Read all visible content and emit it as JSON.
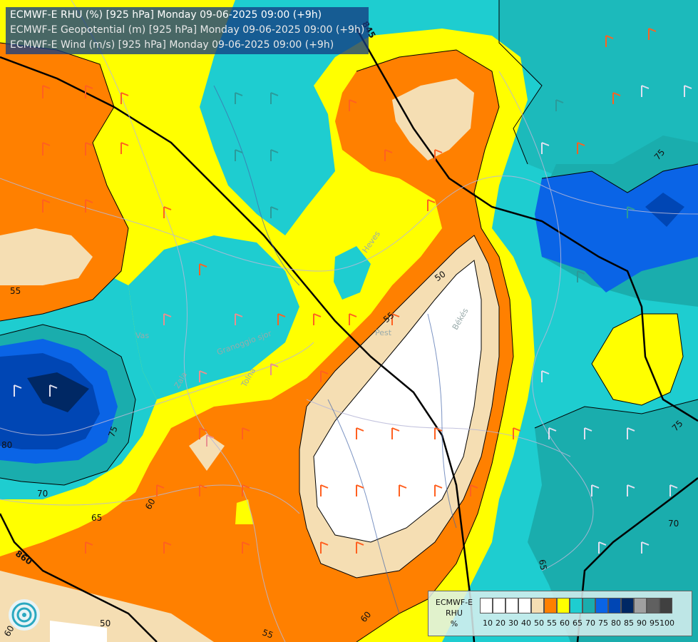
{
  "titles": [
    "ECMWF-E RHU (%) [925 hPa] Monday 09-06-2025 09:00 (+9h)",
    "ECMWF-E Geopotential (m) [925 hPa] Monday 09-06-2025 09:00 (+9h)",
    "ECMWF-E Wind (m/s) [925 hPa] Monday 09-06-2025 09:00 (+9h)"
  ],
  "legend": {
    "title_line1": "ECMWF-E",
    "title_line2": "RHU",
    "unit": "%",
    "ticks": [
      "10",
      "20",
      "30",
      "40",
      "50",
      "55",
      "60",
      "65",
      "70",
      "75",
      "80",
      "85",
      "90",
      "95",
      "100"
    ],
    "colors": [
      "#ffffff",
      "#ffffff",
      "#ffffff",
      "#ffffff",
      "#f5deb3",
      "#ff8000",
      "#ffff00",
      "#1ecdd0",
      "#1aadad",
      "#0a64e6",
      "#0046b4",
      "#002864",
      "#a0a0a0",
      "#606060",
      "#404040"
    ]
  },
  "contour_labels": {
    "rhu": [
      "55",
      "75",
      "80",
      "70",
      "65",
      "60",
      "55",
      "50",
      "50",
      "60",
      "65",
      "75",
      "75",
      "70",
      "55",
      "60"
    ],
    "geopotential": [
      "845",
      "860"
    ]
  },
  "place_labels": [
    "Heves",
    "Pest",
    "Békés",
    "Vas",
    "Zala",
    "Tolna",
    "Granoggio sjor"
  ],
  "colors": {
    "white": "#ffffff",
    "tan": "#f5deb3",
    "orange": "#ff8000",
    "yellow": "#ffff00",
    "cyan": "#1ecdd0",
    "teal": "#1aadad",
    "blue": "#0a64e6",
    "darkblue": "#0046b4",
    "navy": "#002864"
  }
}
